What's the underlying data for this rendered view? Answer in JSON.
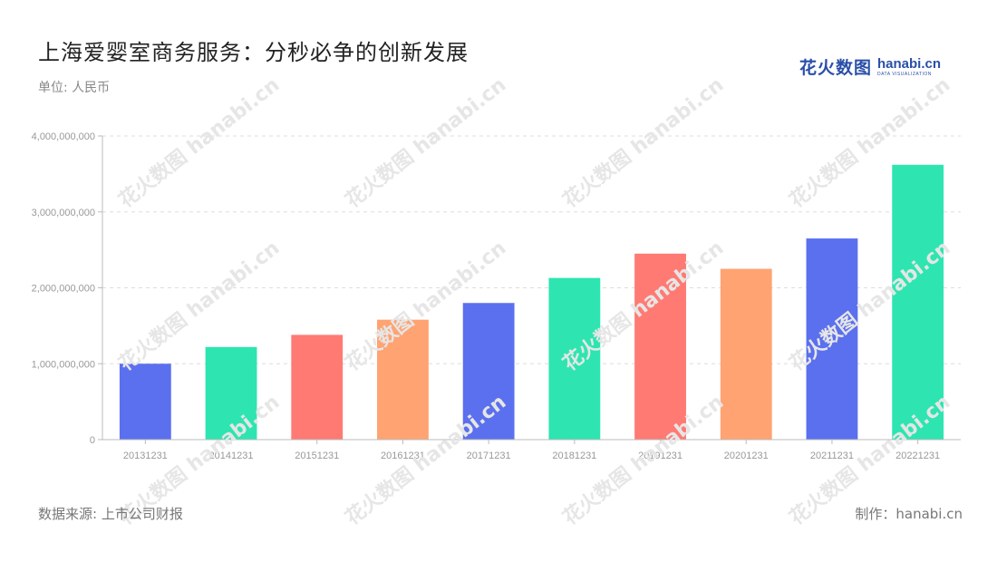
{
  "header": {
    "title": "上海爱婴室商务服务：分秒必争的创新发展",
    "unit": "单位: 人民币"
  },
  "logo": {
    "cn": "花火数图",
    "en": "hanabi.cn",
    "en_sub": "DATA VISUALIZATION",
    "color": "#2a4fa8"
  },
  "footer": {
    "source": "数据来源: 上市公司财报",
    "maker": "制作：hanabi.cn"
  },
  "watermark": {
    "text": "花火数图 hanabi.cn"
  },
  "chart_data": {
    "type": "bar",
    "categories": [
      "20131231",
      "20141231",
      "20151231",
      "20161231",
      "20171231",
      "20181231",
      "20191231",
      "20201231",
      "20211231",
      "20221231"
    ],
    "values": [
      1000000000,
      1220000000,
      1380000000,
      1580000000,
      1800000000,
      2130000000,
      2450000000,
      2250000000,
      2650000000,
      3620000000
    ],
    "colors": [
      "#5b70ee",
      "#2ee5b1",
      "#ff7a73",
      "#ffa372",
      "#5b70ee",
      "#2ee5b1",
      "#ff7a73",
      "#ffa372",
      "#5b70ee",
      "#2ee5b1"
    ],
    "yticks": [
      "0",
      "1,000,000,000",
      "2,000,000,000",
      "3,000,000,000",
      "4,000,000,000"
    ],
    "ylim": [
      0,
      4000000000
    ],
    "grid": true,
    "title": "上海爱婴室商务服务：分秒必争的创新发展",
    "xlabel": "",
    "ylabel": ""
  }
}
